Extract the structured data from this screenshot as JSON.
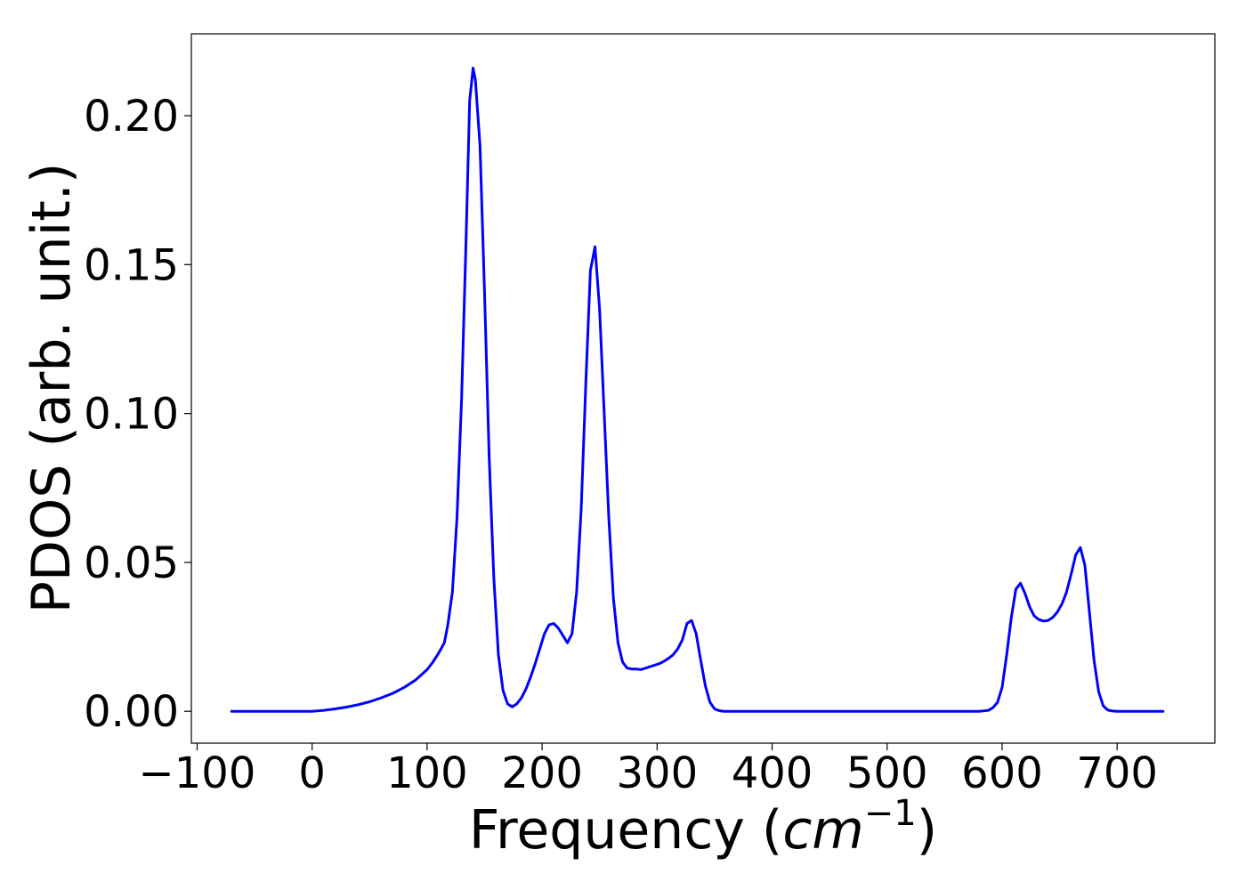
{
  "chart_data": {
    "type": "line",
    "title": "",
    "xlabel_text": "Frequency (",
    "xlabel_math": "cm",
    "xlabel_sup": "−1",
    "xlabel_close": ")",
    "ylabel": "PDOS (arb. unit.)",
    "xlim": [
      -105,
      785
    ],
    "ylim": [
      -0.0107,
      0.2275
    ],
    "xticks": [
      -100,
      0,
      100,
      200,
      300,
      400,
      500,
      600,
      700
    ],
    "xtick_labels": [
      "−100",
      "0",
      "100",
      "200",
      "300",
      "400",
      "500",
      "600",
      "700"
    ],
    "yticks": [
      0.0,
      0.05,
      0.1,
      0.15,
      0.2
    ],
    "ytick_labels": [
      "0.00",
      "0.05",
      "0.10",
      "0.15",
      "0.20"
    ],
    "grid": false,
    "line_color": "#0000ff",
    "series": [
      {
        "x": [
          -70,
          0,
          10,
          20,
          30,
          40,
          50,
          60,
          70,
          80,
          90,
          100,
          105,
          110,
          115,
          118,
          122,
          126,
          130,
          134,
          137,
          140,
          142,
          146,
          150,
          154,
          158,
          162,
          166,
          170,
          174,
          178,
          182,
          186,
          190,
          194,
          198,
          202,
          206,
          210,
          214,
          218,
          222,
          226,
          230,
          234,
          238,
          242,
          246,
          250,
          254,
          258,
          262,
          266,
          270,
          274,
          278,
          282,
          286,
          290,
          294,
          298,
          302,
          306,
          310,
          314,
          318,
          322,
          326,
          330,
          334,
          338,
          342,
          346,
          350,
          354,
          358,
          362,
          370,
          400,
          500,
          580,
          588,
          592,
          596,
          600,
          604,
          608,
          612,
          616,
          620,
          624,
          628,
          632,
          636,
          640,
          644,
          648,
          652,
          656,
          660,
          664,
          668,
          672,
          676,
          680,
          684,
          688,
          692,
          696,
          700,
          740
        ],
        "y": [
          0.0,
          0.0,
          0.0003,
          0.0008,
          0.0014,
          0.0022,
          0.0032,
          0.0045,
          0.006,
          0.008,
          0.0105,
          0.014,
          0.0165,
          0.0195,
          0.023,
          0.029,
          0.04,
          0.065,
          0.105,
          0.16,
          0.205,
          0.216,
          0.212,
          0.19,
          0.14,
          0.085,
          0.045,
          0.019,
          0.007,
          0.0025,
          0.0015,
          0.0025,
          0.0045,
          0.0075,
          0.0115,
          0.016,
          0.021,
          0.026,
          0.029,
          0.0295,
          0.028,
          0.0255,
          0.023,
          0.026,
          0.04,
          0.068,
          0.11,
          0.148,
          0.156,
          0.135,
          0.1,
          0.065,
          0.038,
          0.023,
          0.0165,
          0.0145,
          0.0142,
          0.0142,
          0.014,
          0.0145,
          0.015,
          0.0155,
          0.016,
          0.0168,
          0.0178,
          0.019,
          0.021,
          0.024,
          0.0295,
          0.0305,
          0.026,
          0.017,
          0.0085,
          0.003,
          0.0008,
          0.0002,
          0.0,
          0.0,
          0.0,
          0.0,
          0.0,
          0.0,
          0.0003,
          0.0012,
          0.003,
          0.008,
          0.019,
          0.0315,
          0.041,
          0.043,
          0.0395,
          0.035,
          0.032,
          0.0308,
          0.0303,
          0.0305,
          0.0315,
          0.0333,
          0.036,
          0.04,
          0.046,
          0.0525,
          0.055,
          0.049,
          0.033,
          0.017,
          0.0065,
          0.0018,
          0.0004,
          0.0001,
          0.0,
          0.0
        ]
      }
    ]
  }
}
